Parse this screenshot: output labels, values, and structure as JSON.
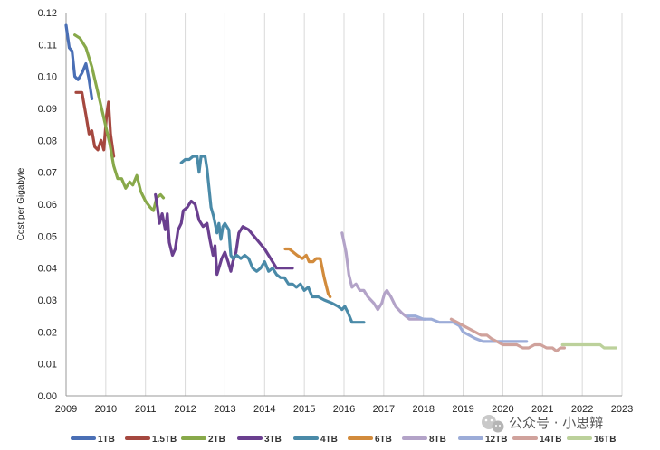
{
  "chart_data": {
    "type": "line",
    "title": "",
    "xlabel": "",
    "ylabel": "Cost per Gigabyte",
    "xlim": [
      2009,
      2023
    ],
    "ylim": [
      0,
      0.12
    ],
    "x_ticks": [
      "2009",
      "2010",
      "2011",
      "2012",
      "2013",
      "2014",
      "2015",
      "2016",
      "2017",
      "2018",
      "2019",
      "2020",
      "2021",
      "2022",
      "2023"
    ],
    "y_ticks": [
      "0.00",
      "0.01",
      "0.02",
      "0.03",
      "0.04",
      "0.05",
      "0.06",
      "0.07",
      "0.08",
      "0.09",
      "0.10",
      "0.11",
      "0.12"
    ],
    "grid": "vertical",
    "legend_position": "bottom",
    "series": [
      {
        "name": "1TB",
        "color": "#4a6fb5",
        "points": [
          [
            2009.0,
            0.116
          ],
          [
            2009.08,
            0.109
          ],
          [
            2009.15,
            0.108
          ],
          [
            2009.22,
            0.1
          ],
          [
            2009.3,
            0.099
          ],
          [
            2009.4,
            0.101
          ],
          [
            2009.5,
            0.104
          ],
          [
            2009.58,
            0.099
          ],
          [
            2009.65,
            0.093
          ]
        ]
      },
      {
        "name": "1.5TB",
        "color": "#a5483f",
        "points": [
          [
            2009.25,
            0.095
          ],
          [
            2009.4,
            0.095
          ],
          [
            2009.5,
            0.088
          ],
          [
            2009.58,
            0.082
          ],
          [
            2009.65,
            0.083
          ],
          [
            2009.72,
            0.078
          ],
          [
            2009.8,
            0.077
          ],
          [
            2009.88,
            0.08
          ],
          [
            2009.95,
            0.077
          ],
          [
            2010.02,
            0.088
          ],
          [
            2010.07,
            0.092
          ],
          [
            2010.12,
            0.082
          ],
          [
            2010.2,
            0.075
          ]
        ]
      },
      {
        "name": "2TB",
        "color": "#88a94a",
        "points": [
          [
            2009.22,
            0.113
          ],
          [
            2009.35,
            0.112
          ],
          [
            2009.5,
            0.109
          ],
          [
            2009.65,
            0.103
          ],
          [
            2009.8,
            0.095
          ],
          [
            2009.95,
            0.087
          ],
          [
            2010.1,
            0.079
          ],
          [
            2010.2,
            0.072
          ],
          [
            2010.3,
            0.068
          ],
          [
            2010.4,
            0.068
          ],
          [
            2010.5,
            0.065
          ],
          [
            2010.6,
            0.067
          ],
          [
            2010.68,
            0.066
          ],
          [
            2010.78,
            0.069
          ],
          [
            2010.88,
            0.064
          ],
          [
            2011.0,
            0.061
          ],
          [
            2011.12,
            0.059
          ],
          [
            2011.2,
            0.058
          ],
          [
            2011.28,
            0.062
          ],
          [
            2011.38,
            0.063
          ],
          [
            2011.45,
            0.062
          ]
        ]
      },
      {
        "name": "3TB",
        "color": "#6a3f8f",
        "points": [
          [
            2011.25,
            0.063
          ],
          [
            2011.3,
            0.059
          ],
          [
            2011.35,
            0.054
          ],
          [
            2011.42,
            0.057
          ],
          [
            2011.5,
            0.052
          ],
          [
            2011.55,
            0.057
          ],
          [
            2011.6,
            0.048
          ],
          [
            2011.68,
            0.044
          ],
          [
            2011.75,
            0.046
          ],
          [
            2011.82,
            0.052
          ],
          [
            2011.9,
            0.054
          ],
          [
            2011.95,
            0.058
          ],
          [
            2012.05,
            0.059
          ],
          [
            2012.15,
            0.061
          ],
          [
            2012.25,
            0.06
          ],
          [
            2012.35,
            0.055
          ],
          [
            2012.45,
            0.053
          ],
          [
            2012.55,
            0.054
          ],
          [
            2012.62,
            0.049
          ],
          [
            2012.7,
            0.044
          ],
          [
            2012.75,
            0.047
          ],
          [
            2012.8,
            0.038
          ],
          [
            2012.85,
            0.04
          ],
          [
            2012.92,
            0.043
          ],
          [
            2013.0,
            0.045
          ],
          [
            2013.08,
            0.042
          ],
          [
            2013.15,
            0.039
          ],
          [
            2013.2,
            0.042
          ],
          [
            2013.28,
            0.045
          ],
          [
            2013.35,
            0.051
          ],
          [
            2013.45,
            0.053
          ],
          [
            2013.6,
            0.052
          ],
          [
            2013.8,
            0.049
          ],
          [
            2014.0,
            0.046
          ],
          [
            2014.15,
            0.043
          ],
          [
            2014.3,
            0.04
          ],
          [
            2014.5,
            0.04
          ],
          [
            2014.7,
            0.04
          ]
        ]
      },
      {
        "name": "4TB",
        "color": "#4a8aa8",
        "points": [
          [
            2011.9,
            0.073
          ],
          [
            2012.0,
            0.074
          ],
          [
            2012.1,
            0.074
          ],
          [
            2012.2,
            0.075
          ],
          [
            2012.3,
            0.075
          ],
          [
            2012.35,
            0.07
          ],
          [
            2012.4,
            0.075
          ],
          [
            2012.5,
            0.075
          ],
          [
            2012.55,
            0.071
          ],
          [
            2012.6,
            0.065
          ],
          [
            2012.65,
            0.059
          ],
          [
            2012.72,
            0.056
          ],
          [
            2012.8,
            0.051
          ],
          [
            2012.85,
            0.054
          ],
          [
            2012.9,
            0.049
          ],
          [
            2012.95,
            0.053
          ],
          [
            2013.0,
            0.054
          ],
          [
            2013.1,
            0.052
          ],
          [
            2013.15,
            0.044
          ],
          [
            2013.2,
            0.043
          ],
          [
            2013.3,
            0.044
          ],
          [
            2013.4,
            0.043
          ],
          [
            2013.5,
            0.044
          ],
          [
            2013.6,
            0.043
          ],
          [
            2013.7,
            0.04
          ],
          [
            2013.8,
            0.039
          ],
          [
            2013.9,
            0.04
          ],
          [
            2014.0,
            0.042
          ],
          [
            2014.1,
            0.039
          ],
          [
            2014.2,
            0.04
          ],
          [
            2014.3,
            0.038
          ],
          [
            2014.4,
            0.037
          ],
          [
            2014.5,
            0.037
          ],
          [
            2014.6,
            0.035
          ],
          [
            2014.7,
            0.035
          ],
          [
            2014.8,
            0.034
          ],
          [
            2014.9,
            0.035
          ],
          [
            2015.0,
            0.033
          ],
          [
            2015.1,
            0.034
          ],
          [
            2015.2,
            0.031
          ],
          [
            2015.35,
            0.031
          ],
          [
            2015.5,
            0.03
          ],
          [
            2015.7,
            0.029
          ],
          [
            2015.85,
            0.028
          ],
          [
            2015.95,
            0.027
          ],
          [
            2016.02,
            0.028
          ],
          [
            2016.1,
            0.026
          ],
          [
            2016.2,
            0.023
          ],
          [
            2016.35,
            0.023
          ],
          [
            2016.5,
            0.023
          ]
        ]
      },
      {
        "name": "6TB",
        "color": "#d28b3c",
        "points": [
          [
            2014.52,
            0.046
          ],
          [
            2014.62,
            0.046
          ],
          [
            2014.72,
            0.045
          ],
          [
            2014.82,
            0.044
          ],
          [
            2014.95,
            0.043
          ],
          [
            2015.05,
            0.044
          ],
          [
            2015.12,
            0.042
          ],
          [
            2015.22,
            0.042
          ],
          [
            2015.3,
            0.043
          ],
          [
            2015.4,
            0.043
          ],
          [
            2015.5,
            0.037
          ],
          [
            2015.6,
            0.032
          ],
          [
            2015.65,
            0.031
          ]
        ]
      },
      {
        "name": "8TB",
        "color": "#b3a3c8",
        "points": [
          [
            2015.95,
            0.051
          ],
          [
            2016.05,
            0.045
          ],
          [
            2016.12,
            0.038
          ],
          [
            2016.2,
            0.034
          ],
          [
            2016.3,
            0.035
          ],
          [
            2016.4,
            0.033
          ],
          [
            2016.5,
            0.033
          ],
          [
            2016.6,
            0.031
          ],
          [
            2016.75,
            0.029
          ],
          [
            2016.85,
            0.027
          ],
          [
            2016.95,
            0.029
          ],
          [
            2017.02,
            0.032
          ],
          [
            2017.08,
            0.033
          ],
          [
            2017.18,
            0.031
          ],
          [
            2017.3,
            0.028
          ],
          [
            2017.45,
            0.026
          ],
          [
            2017.55,
            0.025
          ],
          [
            2017.65,
            0.024
          ],
          [
            2017.75,
            0.024
          ],
          [
            2017.9,
            0.024
          ],
          [
            2018.05,
            0.024
          ]
        ]
      },
      {
        "name": "12TB",
        "color": "#9cacd8",
        "points": [
          [
            2017.6,
            0.025
          ],
          [
            2017.8,
            0.025
          ],
          [
            2018.0,
            0.024
          ],
          [
            2018.2,
            0.024
          ],
          [
            2018.4,
            0.023
          ],
          [
            2018.6,
            0.023
          ],
          [
            2018.75,
            0.023
          ],
          [
            2018.9,
            0.022
          ],
          [
            2019.0,
            0.02
          ],
          [
            2019.15,
            0.019
          ],
          [
            2019.3,
            0.018
          ],
          [
            2019.5,
            0.017
          ],
          [
            2019.7,
            0.017
          ],
          [
            2019.9,
            0.017
          ],
          [
            2020.1,
            0.017
          ],
          [
            2020.3,
            0.017
          ],
          [
            2020.5,
            0.017
          ],
          [
            2020.6,
            0.017
          ]
        ]
      },
      {
        "name": "14TB",
        "color": "#d0a29c",
        "points": [
          [
            2018.7,
            0.024
          ],
          [
            2018.85,
            0.023
          ],
          [
            2019.0,
            0.022
          ],
          [
            2019.15,
            0.021
          ],
          [
            2019.3,
            0.02
          ],
          [
            2019.45,
            0.019
          ],
          [
            2019.6,
            0.019
          ],
          [
            2019.7,
            0.018
          ],
          [
            2019.85,
            0.017
          ],
          [
            2020.0,
            0.016
          ],
          [
            2020.2,
            0.016
          ],
          [
            2020.35,
            0.016
          ],
          [
            2020.5,
            0.015
          ],
          [
            2020.65,
            0.015
          ],
          [
            2020.8,
            0.016
          ],
          [
            2020.95,
            0.016
          ],
          [
            2021.1,
            0.015
          ],
          [
            2021.25,
            0.015
          ],
          [
            2021.35,
            0.014
          ],
          [
            2021.45,
            0.015
          ],
          [
            2021.55,
            0.015
          ]
        ]
      },
      {
        "name": "16TB",
        "color": "#bcd19b",
        "points": [
          [
            2021.5,
            0.016
          ],
          [
            2021.7,
            0.016
          ],
          [
            2021.9,
            0.016
          ],
          [
            2022.1,
            0.016
          ],
          [
            2022.3,
            0.016
          ],
          [
            2022.45,
            0.016
          ],
          [
            2022.55,
            0.015
          ],
          [
            2022.7,
            0.015
          ],
          [
            2022.85,
            0.015
          ]
        ]
      }
    ]
  },
  "watermark": {
    "text": "公众号 · 小思辩",
    "icon": "wechat-icon"
  }
}
